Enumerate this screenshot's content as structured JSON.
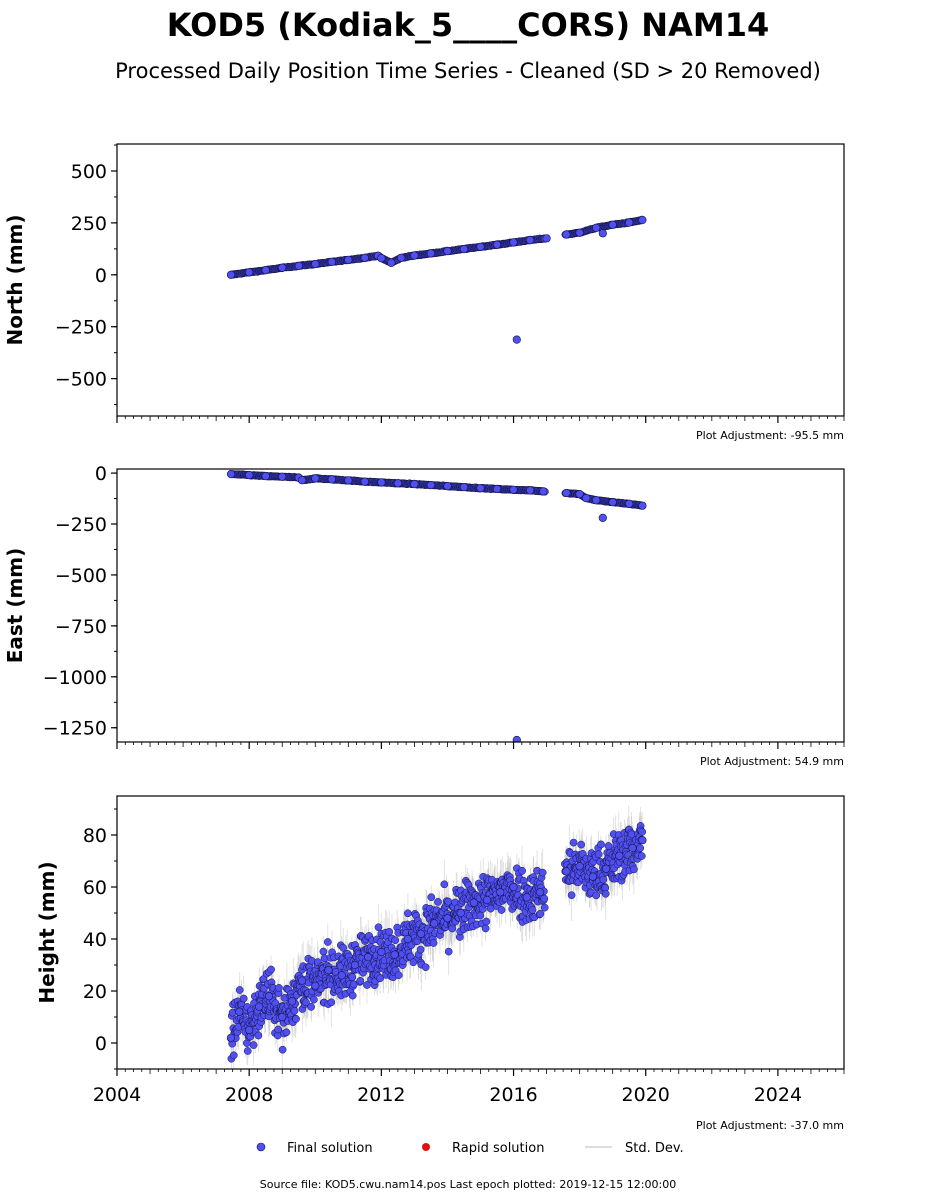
{
  "header": {
    "title": "KOD5 (Kodiak_5____CORS) NAM14",
    "subtitle": "Processed Daily Position Time Series - Cleaned (SD > 20 Removed)"
  },
  "legend": {
    "final": "Final solution",
    "rapid": "Rapid solution",
    "std": "Std. Dev."
  },
  "footer": {
    "source": "Source file: KOD5.cwu.nam14.pos  Last epoch plotted: 2019-12-15 12:00:00"
  },
  "colors": {
    "final_fill": "#4f4ff2",
    "final_edge": "#141448",
    "rapid": "#e01010",
    "std": "#9a9a9a"
  },
  "chart_data": [
    {
      "type": "scatter",
      "ylabel": "North (mm)",
      "adjustment": "Plot Adjustment: -95.5 mm",
      "xlim": [
        2004,
        2026
      ],
      "ylim": [
        -680,
        630
      ],
      "yticks": [
        500,
        250,
        0,
        -250,
        -500
      ],
      "ytick_labels": [
        "500",
        "250",
        "0",
        "−250",
        "−500"
      ],
      "series": [
        {
          "values": [
            [
              2007.45,
              0
            ],
            [
              2008.0,
              12
            ],
            [
              2008.5,
              22
            ],
            [
              2009.0,
              34
            ],
            [
              2009.5,
              43
            ],
            [
              2010.0,
              52
            ],
            [
              2010.5,
              62
            ],
            [
              2011.0,
              72
            ],
            [
              2011.5,
              82
            ],
            [
              2011.9,
              92
            ],
            [
              2012.0,
              80
            ],
            [
              2012.3,
              58
            ],
            [
              2012.6,
              82
            ],
            [
              2013.0,
              93
            ],
            [
              2013.5,
              103
            ],
            [
              2014.0,
              114
            ],
            [
              2014.5,
              124
            ],
            [
              2015.0,
              135
            ],
            [
              2015.5,
              145
            ],
            [
              2016.0,
              156
            ],
            [
              2016.1,
              -312
            ],
            [
              2016.5,
              167
            ],
            [
              2017.0,
              176
            ],
            [
              2017.6,
              194
            ],
            [
              2018.0,
              203
            ],
            [
              2018.5,
              226
            ],
            [
              2018.7,
              200
            ],
            [
              2019.0,
              241
            ],
            [
              2019.5,
              252
            ],
            [
              2019.9,
              264
            ]
          ]
        }
      ]
    },
    {
      "type": "scatter",
      "ylabel": "East (mm)",
      "adjustment": "Plot Adjustment: 54.9 mm",
      "xlim": [
        2004,
        2026
      ],
      "ylim": [
        -1320,
        20
      ],
      "yticks": [
        0,
        -250,
        -500,
        -750,
        -1000,
        -1250
      ],
      "ytick_labels": [
        "0",
        "−250",
        "−500",
        "−750",
        "−1000",
        "−1250"
      ],
      "series": [
        {
          "values": [
            [
              2007.45,
              -5
            ],
            [
              2008.0,
              -10
            ],
            [
              2008.5,
              -15
            ],
            [
              2009.0,
              -18
            ],
            [
              2009.5,
              -22
            ],
            [
              2009.6,
              -35
            ],
            [
              2010.0,
              -26
            ],
            [
              2010.5,
              -31
            ],
            [
              2011.0,
              -36
            ],
            [
              2011.5,
              -42
            ],
            [
              2012.0,
              -46
            ],
            [
              2012.5,
              -50
            ],
            [
              2013.0,
              -54
            ],
            [
              2013.5,
              -59
            ],
            [
              2014.0,
              -64
            ],
            [
              2014.5,
              -69
            ],
            [
              2015.0,
              -74
            ],
            [
              2015.5,
              -78
            ],
            [
              2016.0,
              -82
            ],
            [
              2016.1,
              -1310
            ],
            [
              2016.5,
              -85
            ],
            [
              2016.9,
              -90
            ],
            [
              2017.6,
              -98
            ],
            [
              2018.0,
              -103
            ],
            [
              2018.2,
              -123
            ],
            [
              2018.5,
              -133
            ],
            [
              2018.7,
              -220
            ],
            [
              2019.0,
              -143
            ],
            [
              2019.5,
              -151
            ],
            [
              2019.9,
              -160
            ]
          ]
        }
      ]
    },
    {
      "type": "scatter",
      "ylabel": "Height (mm)",
      "adjustment": "Plot Adjustment: -37.0 mm",
      "xlim": [
        2004,
        2026
      ],
      "ylim": [
        -10,
        95
      ],
      "xticks": [
        2004,
        2008,
        2012,
        2016,
        2020,
        2024
      ],
      "xtick_labels": [
        "2004",
        "2008",
        "2012",
        "2016",
        "2020",
        "2024"
      ],
      "yticks": [
        80,
        60,
        40,
        20,
        0
      ],
      "ytick_labels": [
        "80",
        "60",
        "40",
        "20",
        "0"
      ],
      "series": [
        {
          "values": [
            [
              2007.45,
              2
            ],
            [
              2007.7,
              12
            ],
            [
              2008.0,
              5
            ],
            [
              2008.3,
              14
            ],
            [
              2008.6,
              18
            ],
            [
              2009.0,
              10
            ],
            [
              2009.3,
              16
            ],
            [
              2009.6,
              24
            ],
            [
              2010.0,
              22
            ],
            [
              2010.4,
              28
            ],
            [
              2010.8,
              26
            ],
            [
              2011.2,
              30
            ],
            [
              2011.6,
              33
            ],
            [
              2012.0,
              35
            ],
            [
              2012.4,
              34
            ],
            [
              2012.8,
              40
            ],
            [
              2013.2,
              42
            ],
            [
              2013.6,
              46
            ],
            [
              2014.0,
              48
            ],
            [
              2014.4,
              50
            ],
            [
              2014.8,
              54
            ],
            [
              2015.2,
              55
            ],
            [
              2015.6,
              58
            ],
            [
              2016.0,
              60
            ],
            [
              2016.4,
              56
            ],
            [
              2016.8,
              58
            ],
            [
              2017.6,
              66
            ],
            [
              2018.0,
              68
            ],
            [
              2018.4,
              64
            ],
            [
              2018.8,
              67
            ],
            [
              2019.2,
              72
            ],
            [
              2019.6,
              75
            ],
            [
              2019.9,
              78
            ]
          ]
        }
      ]
    }
  ]
}
